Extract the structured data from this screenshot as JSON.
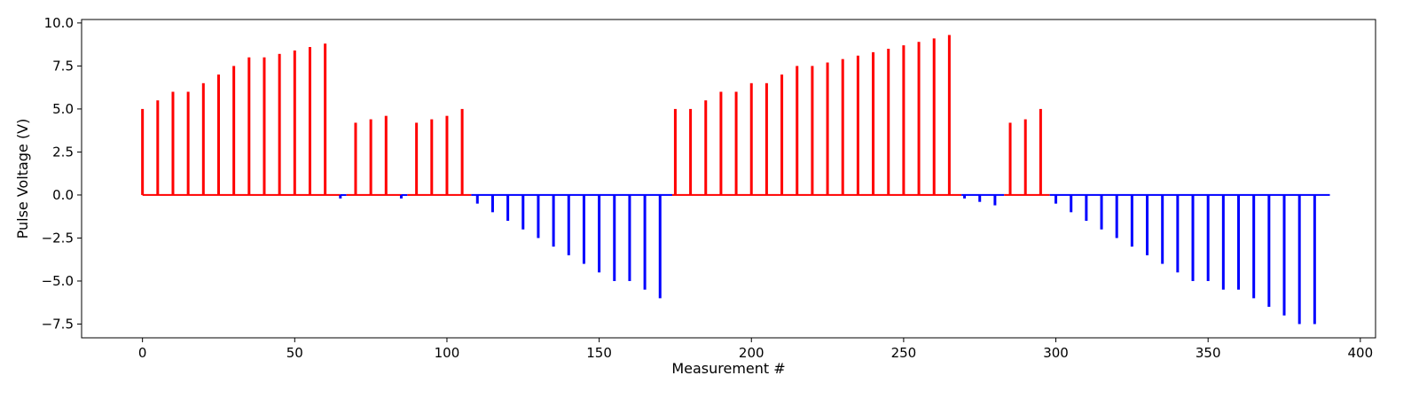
{
  "chart_data": {
    "type": "bar",
    "title": "",
    "xlabel": "Measurement #",
    "ylabel": "Pulse Voltage (V)",
    "xlim": [
      -20,
      405
    ],
    "ylim": [
      -8.3,
      10.2
    ],
    "xticks": [
      0,
      50,
      100,
      150,
      200,
      250,
      300,
      350,
      400
    ],
    "yticks": [
      -7.5,
      -5.0,
      -2.5,
      0.0,
      2.5,
      5.0,
      7.5,
      10.0
    ],
    "xtick_labels": [
      "0",
      "50",
      "100",
      "150",
      "200",
      "250",
      "300",
      "350",
      "400"
    ],
    "ytick_labels": [
      "−7.5",
      "−5.0",
      "−2.5",
      "0.0",
      "2.5",
      "5.0",
      "7.5",
      "10.0"
    ],
    "grid": false,
    "colors": {
      "positive": "#ff0000",
      "negative": "#0000ff"
    },
    "series": [
      {
        "color": "#ff0000",
        "x": [
          0,
          5,
          10,
          15,
          20,
          25,
          30,
          35,
          40,
          45,
          50,
          55,
          60,
          70,
          75,
          80,
          90,
          95,
          100,
          105,
          175,
          180,
          185,
          190,
          195,
          200,
          205,
          210,
          215,
          220,
          225,
          230,
          235,
          240,
          245,
          250,
          255,
          260,
          265,
          285,
          290,
          295
        ],
        "values": [
          5.0,
          5.5,
          6.0,
          6.0,
          6.5,
          7.0,
          7.5,
          8.0,
          8.0,
          8.2,
          8.4,
          8.6,
          8.8,
          4.2,
          4.4,
          4.6,
          4.2,
          4.4,
          4.6,
          5.0,
          5.0,
          5.0,
          5.5,
          6.0,
          6.0,
          6.5,
          6.5,
          7.0,
          7.5,
          7.5,
          7.7,
          7.9,
          8.1,
          8.3,
          8.5,
          8.7,
          8.9,
          9.1,
          9.3,
          4.2,
          4.4,
          5.0
        ]
      },
      {
        "color": "#0000ff",
        "x": [
          65,
          85,
          110,
          115,
          120,
          125,
          130,
          135,
          140,
          145,
          150,
          155,
          160,
          165,
          170,
          270,
          275,
          280,
          300,
          305,
          310,
          315,
          320,
          325,
          330,
          335,
          340,
          345,
          350,
          355,
          360,
          365,
          370,
          375,
          380,
          385
        ],
        "values": [
          -0.2,
          -0.2,
          -0.5,
          -1.0,
          -1.5,
          -2.0,
          -2.5,
          -3.0,
          -3.5,
          -4.0,
          -4.5,
          -5.0,
          -5.0,
          -5.5,
          -6.0,
          -0.2,
          -0.4,
          -0.6,
          -0.5,
          -1.0,
          -1.5,
          -2.0,
          -2.5,
          -3.0,
          -3.5,
          -4.0,
          -4.5,
          -5.0,
          -5.0,
          -5.5,
          -5.5,
          -6.0,
          -6.5,
          -7.0,
          -7.5,
          -7.5
        ]
      }
    ],
    "baseline_segments": [
      {
        "color": "#ff0000",
        "x": [
          0,
          65
        ]
      },
      {
        "color": "#0000ff",
        "x": [
          65,
          67
        ]
      },
      {
        "color": "#ff0000",
        "x": [
          67,
          85
        ]
      },
      {
        "color": "#0000ff",
        "x": [
          85,
          87
        ]
      },
      {
        "color": "#ff0000",
        "x": [
          87,
          108
        ]
      },
      {
        "color": "#0000ff",
        "x": [
          108,
          174
        ]
      },
      {
        "color": "#ff0000",
        "x": [
          174,
          269
        ]
      },
      {
        "color": "#0000ff",
        "x": [
          269,
          283
        ]
      },
      {
        "color": "#ff0000",
        "x": [
          283,
          298
        ]
      },
      {
        "color": "#0000ff",
        "x": [
          298,
          390
        ]
      }
    ]
  }
}
